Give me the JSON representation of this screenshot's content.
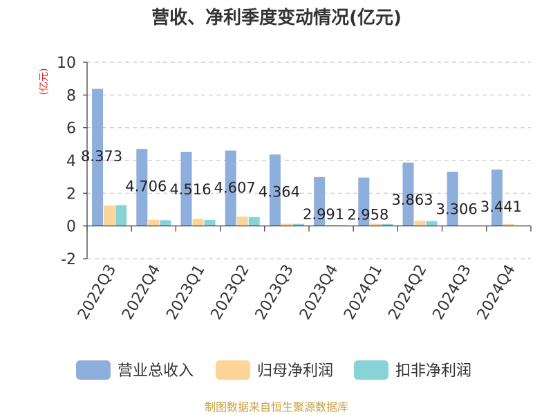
{
  "chart_data": {
    "type": "bar",
    "title": "营收、净利季度变动情况(亿元)",
    "unit_label": "(亿元)",
    "categories": [
      "2022Q3",
      "2022Q4",
      "2023Q1",
      "2023Q2",
      "2023Q3",
      "2023Q4",
      "2024Q1",
      "2024Q2",
      "2024Q3",
      "2024Q4"
    ],
    "series": [
      {
        "name": "营业总收入",
        "color": "#8eaedb",
        "values": [
          8.373,
          4.706,
          4.516,
          4.607,
          4.364,
          2.991,
          2.958,
          3.863,
          3.306,
          3.441
        ],
        "labels": [
          "8.373",
          "4.706",
          "4.516",
          "4.607",
          "4.364",
          "2.991",
          "2.958",
          "3.863",
          "3.306",
          "3.441"
        ]
      },
      {
        "name": "归母净利润",
        "color": "#fdd598",
        "values": [
          1.24,
          0.38,
          0.44,
          0.57,
          0.13,
          0.07,
          0.13,
          0.33,
          0.03,
          0.12
        ]
      },
      {
        "name": "扣非净利润",
        "color": "#86d4d6",
        "values": [
          1.27,
          0.35,
          0.37,
          0.54,
          0.13,
          0.04,
          0.12,
          0.3,
          0.02,
          0.03
        ]
      }
    ],
    "yticks": [
      "-2",
      "0",
      "2",
      "4",
      "6",
      "8",
      "10"
    ],
    "ylim": [
      -2,
      10
    ],
    "grid": true,
    "legend_position": "bottom"
  },
  "source_note": "制图数据来自恒生聚源数据库"
}
